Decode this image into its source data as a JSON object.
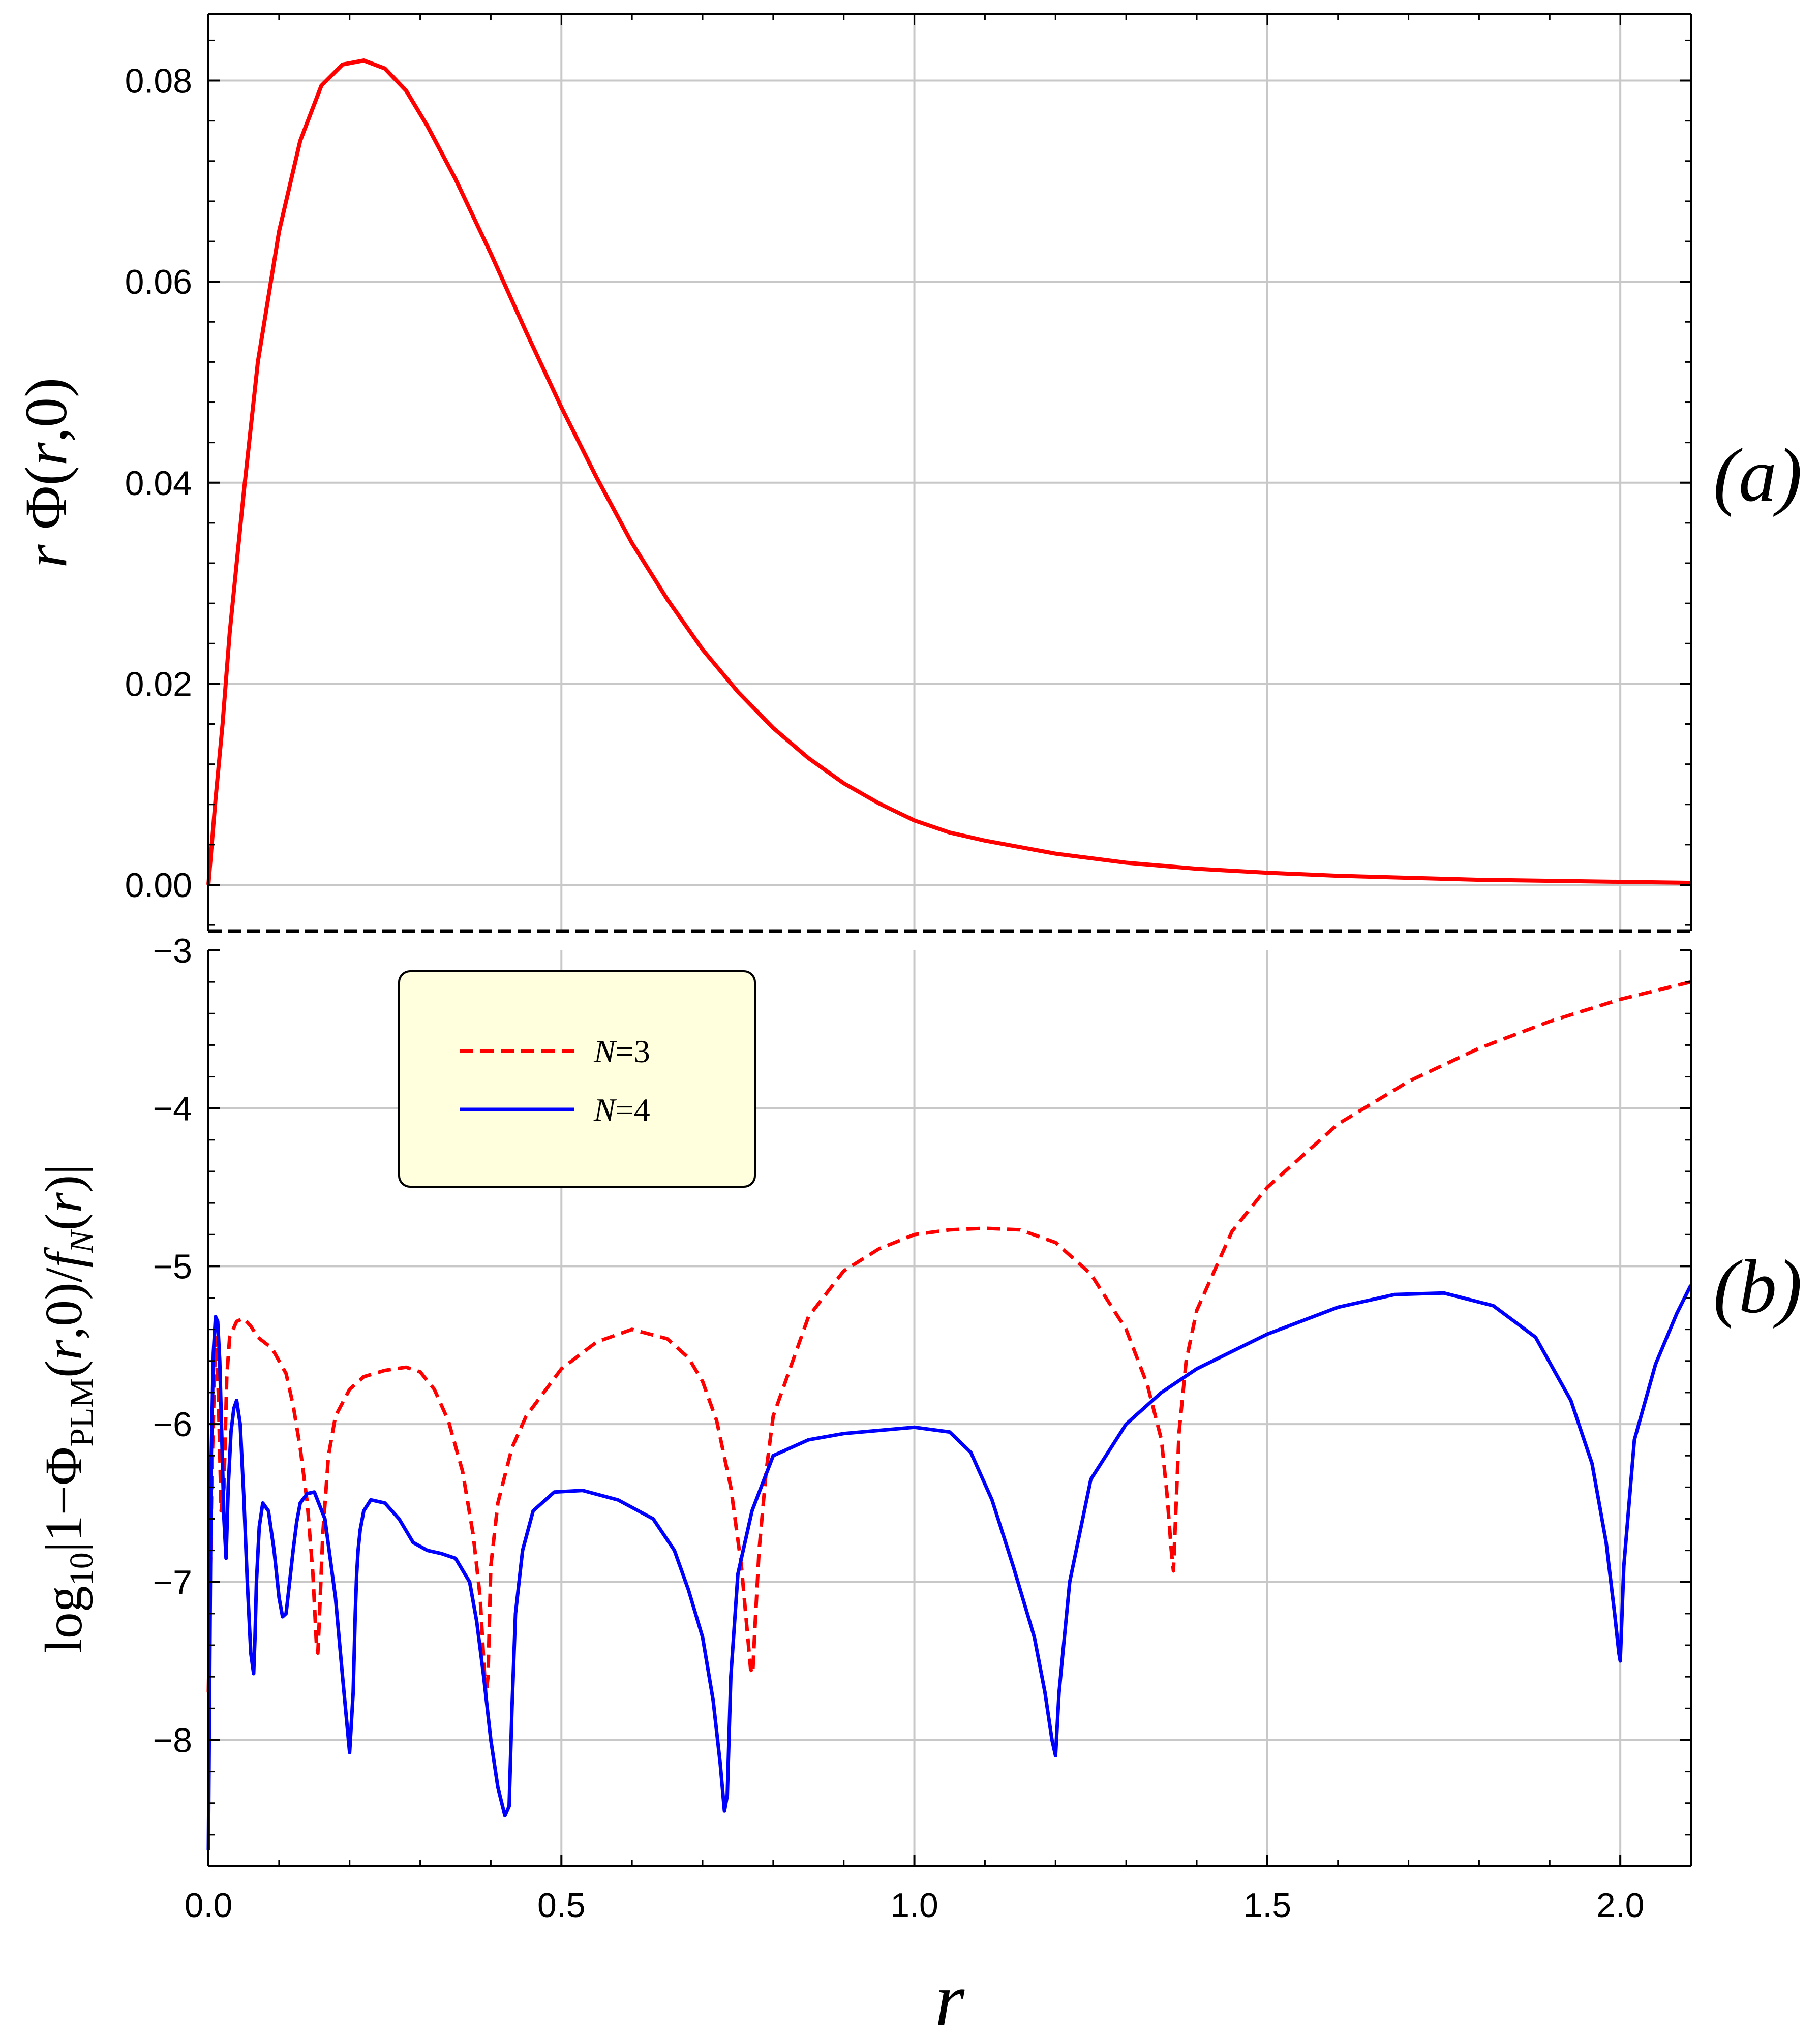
{
  "chart_data": [
    {
      "panel": "(a)",
      "type": "line",
      "xlabel": "r",
      "ylabel": "r Φ(r,0)",
      "ylabel_parts": {
        "italic_r": "r",
        "phi": " Φ(",
        "italic_r2": "r",
        "rest": ",0)"
      },
      "xlim": [
        0,
        2.1
      ],
      "ylim": [
        -0.0046,
        0.0866
      ],
      "yticks": [
        0.0,
        0.02,
        0.04,
        0.06,
        0.08
      ],
      "ytick_labels": [
        "0.00",
        "0.02",
        "0.04",
        "0.06",
        "0.08"
      ],
      "xgrid": [
        0.5,
        1.0,
        1.5,
        2.0
      ],
      "grid": true,
      "series": [
        {
          "name": "r Φ(r,0)",
          "color": "#ff0000",
          "dashed": false,
          "x": [
            0.0,
            0.01,
            0.02,
            0.03,
            0.05,
            0.07,
            0.1,
            0.13,
            0.16,
            0.19,
            0.22,
            0.25,
            0.28,
            0.31,
            0.35,
            0.4,
            0.45,
            0.5,
            0.55,
            0.6,
            0.65,
            0.7,
            0.75,
            0.8,
            0.85,
            0.9,
            0.95,
            1.0,
            1.05,
            1.1,
            1.2,
            1.3,
            1.4,
            1.5,
            1.6,
            1.7,
            1.8,
            1.9,
            2.0,
            2.1
          ],
          "y": [
            0.0,
            0.0085,
            0.016,
            0.025,
            0.039,
            0.052,
            0.065,
            0.074,
            0.0795,
            0.0816,
            0.082,
            0.0812,
            0.079,
            0.0755,
            0.0702,
            0.0628,
            0.055,
            0.0475,
            0.0405,
            0.034,
            0.0284,
            0.0234,
            0.0192,
            0.0156,
            0.0126,
            0.0101,
            0.0081,
            0.0064,
            0.0052,
            0.0044,
            0.0031,
            0.0022,
            0.0016,
            0.0012,
            0.0009,
            0.0007,
            0.0005,
            0.0004,
            0.0003,
            0.0002
          ]
        }
      ]
    },
    {
      "panel": "(b)",
      "type": "line",
      "xlabel": "r",
      "ylabel": "log10|1−ΦPLM(r,0)/fN(r)|",
      "ylabel_parts": {
        "log": "log",
        "log_sub": "10",
        "bar1": "|1−Φ",
        "phi_sub": "PLM",
        "mid": "(",
        "r1": "r",
        "mid2": ",0)/",
        "f": "f",
        "f_sub": "N",
        "open": "(",
        "r2": "r",
        "close": ")|"
      },
      "xlim": [
        0,
        2.1
      ],
      "ylim": [
        -8.8,
        -3.0
      ],
      "xticks": [
        0.0,
        0.5,
        1.0,
        1.5,
        2.0
      ],
      "xtick_labels": [
        "0.0",
        "0.5",
        "1.0",
        "1.5",
        "2.0"
      ],
      "yticks": [
        -3,
        -4,
        -5,
        -6,
        -7,
        -8
      ],
      "ytick_labels": [
        "−3",
        "−4",
        "−5",
        "−6",
        "−7",
        "−8"
      ],
      "grid": true,
      "legend": {
        "position": "top-left",
        "entries": [
          {
            "label_var": "N",
            "label_rest": "=3",
            "color": "#ff0000",
            "dashed": true
          },
          {
            "label_var": "N",
            "label_rest": "=4",
            "color": "#0000ff",
            "dashed": false
          }
        ]
      },
      "series": [
        {
          "name": "N=3",
          "color": "#ff0000",
          "dashed": true,
          "x": [
            0.0,
            0.005,
            0.01,
            0.014,
            0.018,
            0.022,
            0.026,
            0.03,
            0.04,
            0.05,
            0.06,
            0.07,
            0.09,
            0.11,
            0.12,
            0.13,
            0.14,
            0.148,
            0.153,
            0.155,
            0.157,
            0.162,
            0.17,
            0.18,
            0.2,
            0.22,
            0.25,
            0.28,
            0.3,
            0.32,
            0.34,
            0.36,
            0.375,
            0.385,
            0.39,
            0.393,
            0.396,
            0.4,
            0.41,
            0.43,
            0.45,
            0.5,
            0.55,
            0.6,
            0.65,
            0.68,
            0.7,
            0.72,
            0.74,
            0.755,
            0.763,
            0.768,
            0.771,
            0.774,
            0.78,
            0.79,
            0.8,
            0.85,
            0.9,
            0.95,
            1.0,
            1.05,
            1.1,
            1.15,
            1.2,
            1.25,
            1.3,
            1.33,
            1.35,
            1.358,
            1.364,
            1.367,
            1.37,
            1.375,
            1.385,
            1.4,
            1.45,
            1.5,
            1.6,
            1.7,
            1.8,
            1.9,
            2.0,
            2.1
          ],
          "y": [
            -7.7,
            -6.3,
            -5.45,
            -5.8,
            -6.55,
            -6.4,
            -5.7,
            -5.45,
            -5.35,
            -5.33,
            -5.38,
            -5.45,
            -5.52,
            -5.68,
            -5.88,
            -6.15,
            -6.5,
            -6.95,
            -7.4,
            -7.45,
            -7.25,
            -6.7,
            -6.2,
            -5.95,
            -5.78,
            -5.7,
            -5.66,
            -5.64,
            -5.67,
            -5.78,
            -5.98,
            -6.3,
            -6.7,
            -7.1,
            -7.5,
            -7.72,
            -7.6,
            -6.9,
            -6.5,
            -6.15,
            -5.95,
            -5.65,
            -5.48,
            -5.4,
            -5.46,
            -5.58,
            -5.73,
            -5.98,
            -6.4,
            -6.9,
            -7.3,
            -7.55,
            -7.58,
            -7.3,
            -6.8,
            -6.3,
            -5.95,
            -5.32,
            -5.03,
            -4.89,
            -4.8,
            -4.77,
            -4.76,
            -4.77,
            -4.85,
            -5.05,
            -5.4,
            -5.75,
            -6.1,
            -6.45,
            -6.8,
            -6.93,
            -6.6,
            -6.05,
            -5.6,
            -5.28,
            -4.78,
            -4.5,
            -4.1,
            -3.83,
            -3.62,
            -3.45,
            -3.31,
            -3.2
          ]
        },
        {
          "name": "N=4",
          "color": "#0000ff",
          "dashed": false,
          "x": [
            0.0,
            0.004,
            0.007,
            0.01,
            0.013,
            0.016,
            0.019,
            0.022,
            0.025,
            0.028,
            0.032,
            0.036,
            0.04,
            0.045,
            0.05,
            0.055,
            0.06,
            0.064,
            0.066,
            0.068,
            0.072,
            0.077,
            0.085,
            0.093,
            0.1,
            0.105,
            0.11,
            0.115,
            0.12,
            0.125,
            0.13,
            0.14,
            0.15,
            0.165,
            0.18,
            0.19,
            0.2,
            0.205,
            0.208,
            0.21,
            0.212,
            0.215,
            0.22,
            0.23,
            0.25,
            0.27,
            0.29,
            0.31,
            0.33,
            0.35,
            0.37,
            0.38,
            0.39,
            0.4,
            0.41,
            0.42,
            0.426,
            0.43,
            0.435,
            0.445,
            0.46,
            0.49,
            0.53,
            0.58,
            0.63,
            0.66,
            0.68,
            0.7,
            0.715,
            0.725,
            0.731,
            0.735,
            0.74,
            0.75,
            0.77,
            0.8,
            0.85,
            0.9,
            0.95,
            1.0,
            1.05,
            1.08,
            1.11,
            1.14,
            1.17,
            1.185,
            1.195,
            1.2,
            1.205,
            1.22,
            1.25,
            1.3,
            1.35,
            1.4,
            1.5,
            1.6,
            1.68,
            1.75,
            1.82,
            1.88,
            1.93,
            1.96,
            1.98,
            1.992,
            1.998,
            2.0,
            2.005,
            2.02,
            2.05,
            2.08,
            2.1
          ],
          "y": [
            -8.7,
            -6.2,
            -5.55,
            -5.32,
            -5.35,
            -5.6,
            -6.1,
            -6.6,
            -6.85,
            -6.4,
            -6.05,
            -5.9,
            -5.85,
            -6.0,
            -6.45,
            -7.0,
            -7.45,
            -7.58,
            -7.35,
            -7.0,
            -6.65,
            -6.5,
            -6.55,
            -6.8,
            -7.1,
            -7.22,
            -7.2,
            -7.0,
            -6.8,
            -6.62,
            -6.5,
            -6.44,
            -6.43,
            -6.6,
            -7.1,
            -7.6,
            -8.08,
            -7.7,
            -7.2,
            -6.95,
            -6.8,
            -6.67,
            -6.55,
            -6.48,
            -6.5,
            -6.6,
            -6.75,
            -6.8,
            -6.82,
            -6.85,
            -7.0,
            -7.25,
            -7.6,
            -8.0,
            -8.3,
            -8.48,
            -8.42,
            -7.8,
            -7.2,
            -6.8,
            -6.55,
            -6.43,
            -6.42,
            -6.48,
            -6.6,
            -6.8,
            -7.05,
            -7.35,
            -7.75,
            -8.15,
            -8.45,
            -8.35,
            -7.6,
            -6.95,
            -6.55,
            -6.2,
            -6.1,
            -6.06,
            -6.04,
            -6.02,
            -6.05,
            -6.18,
            -6.48,
            -6.9,
            -7.35,
            -7.7,
            -8.0,
            -8.1,
            -7.7,
            -7.0,
            -6.35,
            -6.0,
            -5.8,
            -5.65,
            -5.43,
            -5.26,
            -5.18,
            -5.17,
            -5.25,
            -5.45,
            -5.85,
            -6.25,
            -6.75,
            -7.2,
            -7.45,
            -7.5,
            -6.9,
            -6.1,
            -5.62,
            -5.3,
            -5.12
          ]
        }
      ]
    }
  ]
}
